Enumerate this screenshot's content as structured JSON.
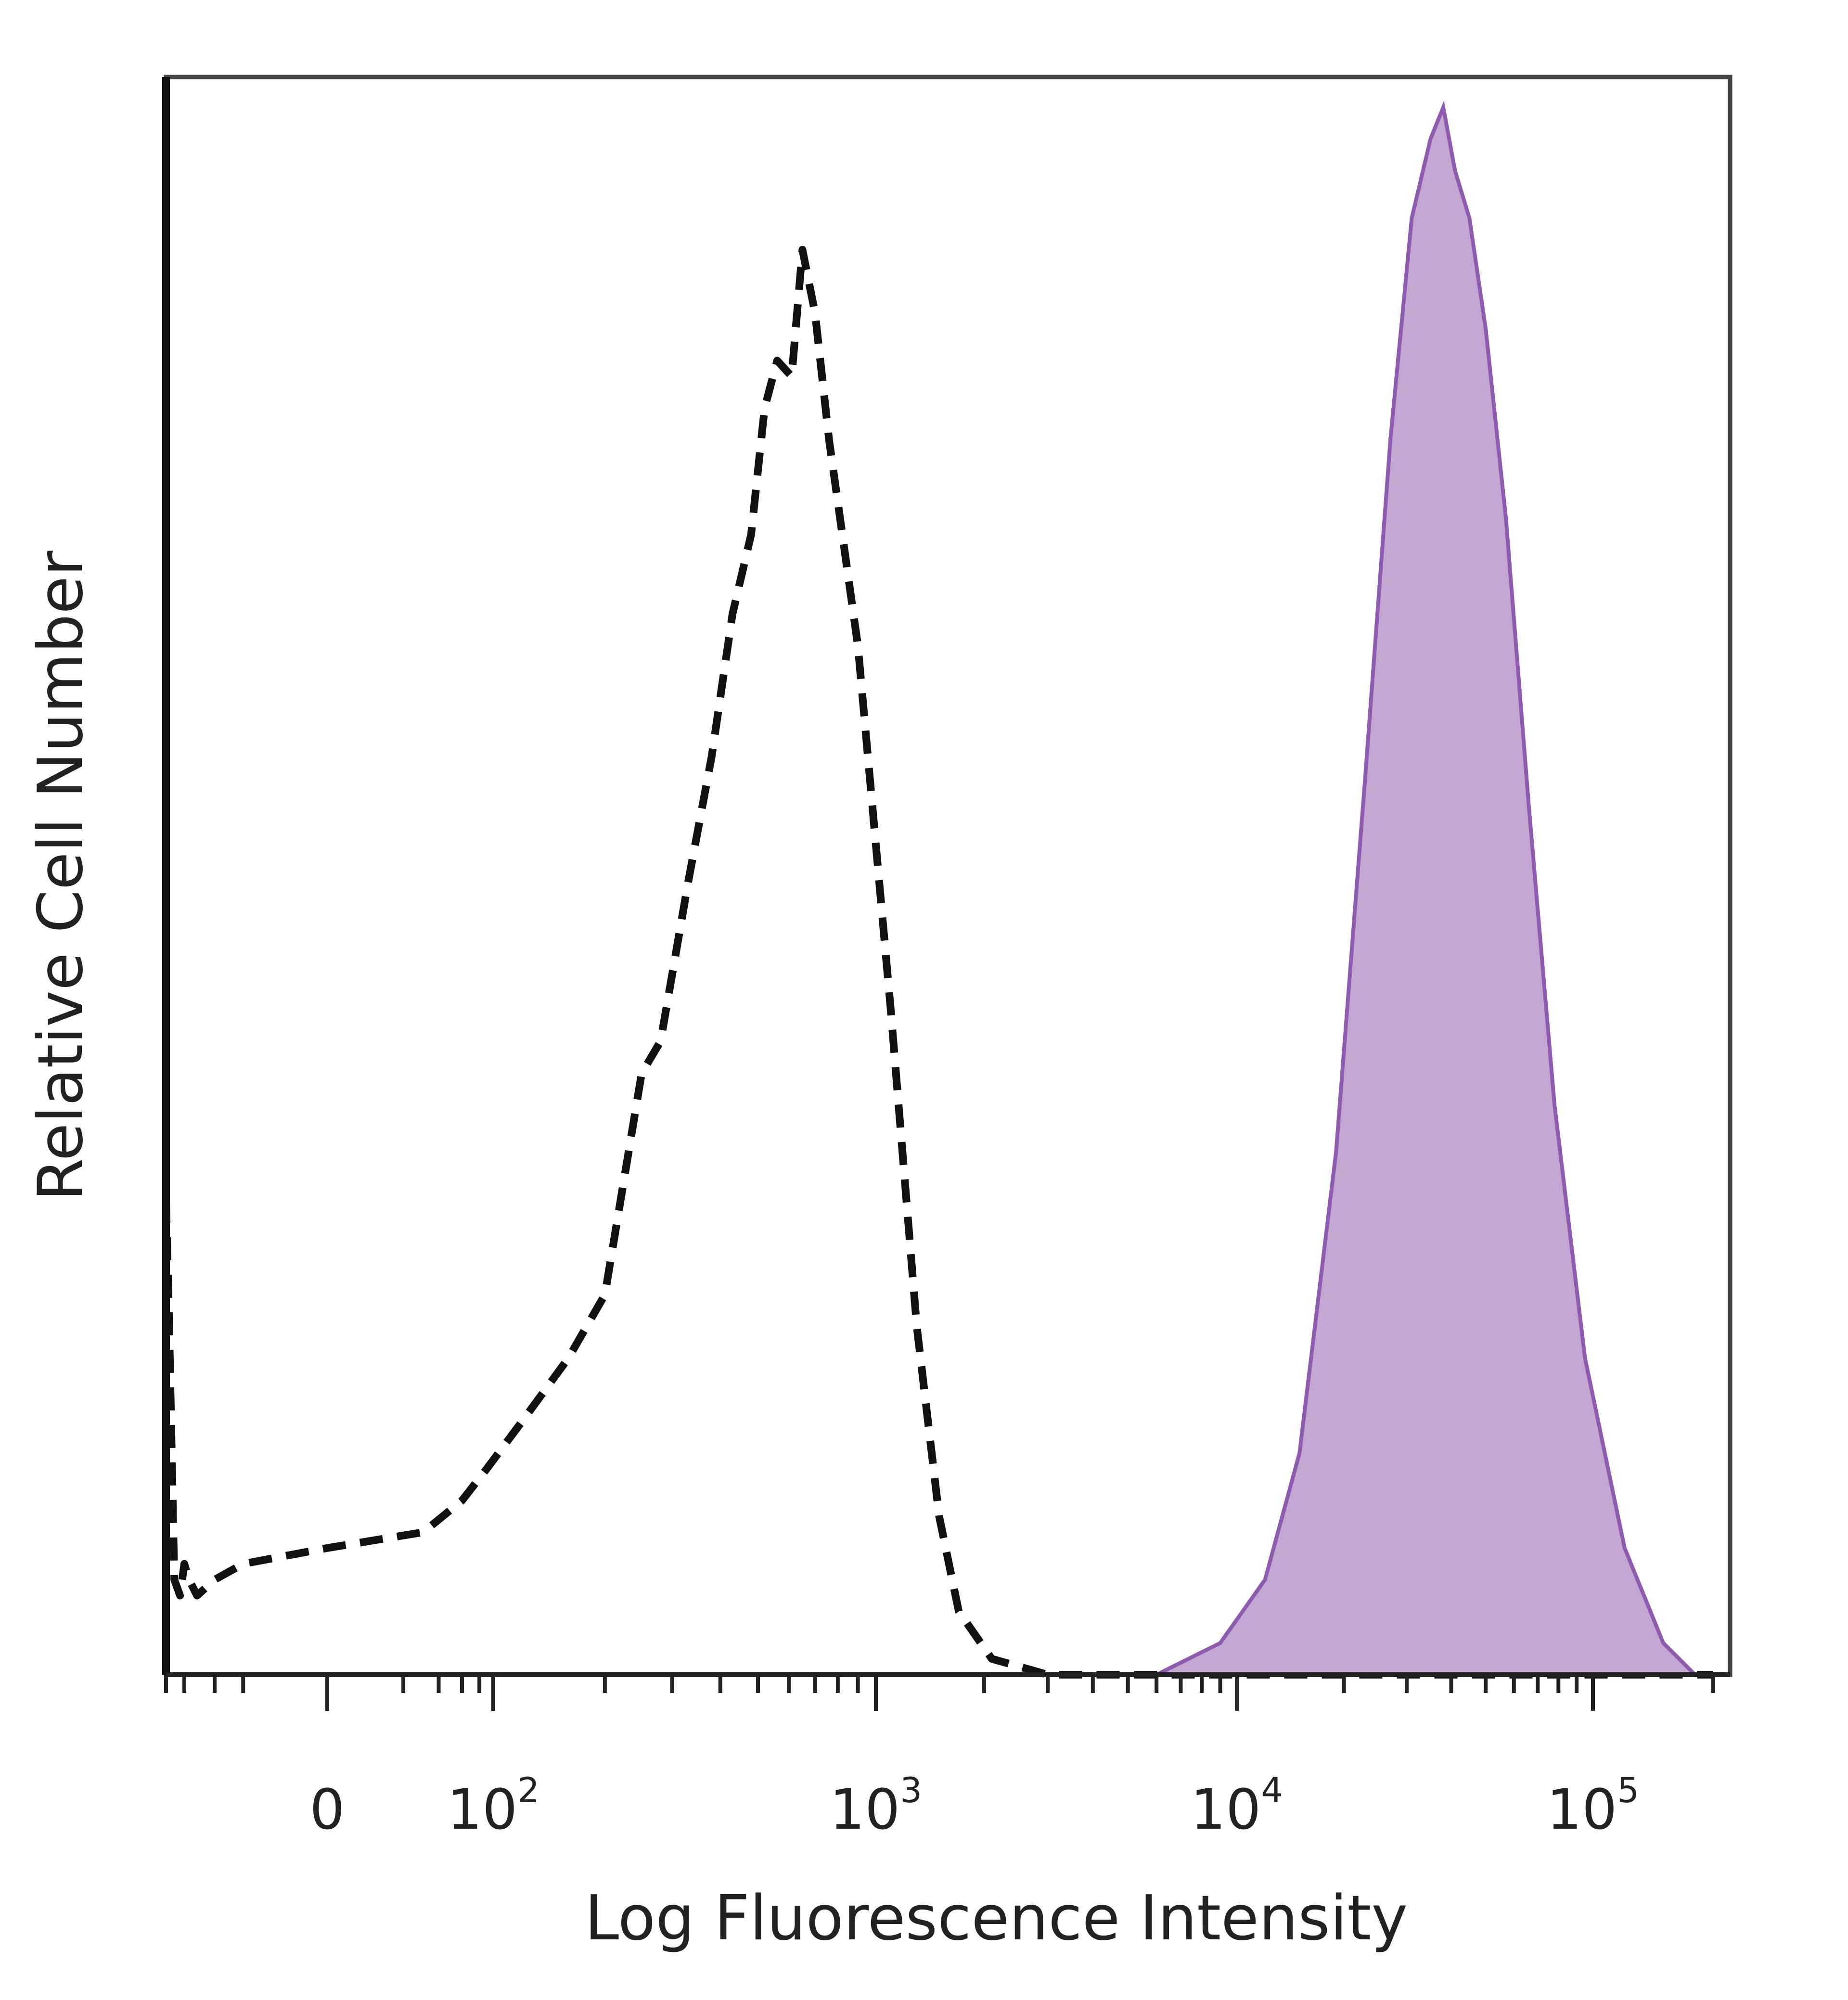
{
  "chart_data": {
    "type": "area",
    "title": "",
    "xlabel": "Log Fluorescence Intensity",
    "ylabel": "Relative Cell Number",
    "x_scale": "biexponential",
    "x_ticks": [
      {
        "value": 0,
        "base": "0",
        "exp": ""
      },
      {
        "value": 100,
        "base": "10",
        "exp": "2"
      },
      {
        "value": 1000,
        "base": "10",
        "exp": "3"
      },
      {
        "value": 10000,
        "base": "10",
        "exp": "4"
      },
      {
        "value": 100000,
        "base": "10",
        "exp": "5"
      }
    ],
    "ylim": [
      0,
      100
    ],
    "grid": false,
    "series": [
      {
        "style": "dashed",
        "color": "#111111",
        "points": [
          [
            -300,
            30
          ],
          [
            -280,
            22
          ],
          [
            -250,
            6
          ],
          [
            -220,
            5
          ],
          [
            -200,
            7
          ],
          [
            -180,
            6
          ],
          [
            -150,
            5
          ],
          [
            -100,
            6
          ],
          [
            -50,
            7
          ],
          [
            0,
            8
          ],
          [
            30,
            9
          ],
          [
            60,
            11
          ],
          [
            90,
            13
          ],
          [
            120,
            16
          ],
          [
            160,
            20
          ],
          [
            200,
            24
          ],
          [
            250,
            38
          ],
          [
            280,
            40
          ],
          [
            330,
            50
          ],
          [
            380,
            58
          ],
          [
            430,
            67
          ],
          [
            480,
            72
          ],
          [
            520,
            80
          ],
          [
            560,
            83
          ],
          [
            610,
            82
          ],
          [
            650,
            90
          ],
          [
            700,
            86
          ],
          [
            760,
            78
          ],
          [
            900,
            65
          ],
          [
            1100,
            42
          ],
          [
            1300,
            22
          ],
          [
            1500,
            10
          ],
          [
            1700,
            4
          ],
          [
            2100,
            1
          ],
          [
            3000,
            0
          ],
          [
            10000,
            0
          ],
          [
            200000,
            0
          ]
        ]
      },
      {
        "style": "filled",
        "color": "#8e5bb0",
        "fill": "#c3a6d1",
        "points": [
          [
            6000,
            0
          ],
          [
            9000,
            2
          ],
          [
            12000,
            6
          ],
          [
            15000,
            14
          ],
          [
            19000,
            33
          ],
          [
            23000,
            57
          ],
          [
            27000,
            78
          ],
          [
            31000,
            92
          ],
          [
            35000,
            97
          ],
          [
            38000,
            99
          ],
          [
            41000,
            95
          ],
          [
            45000,
            92
          ],
          [
            50000,
            85
          ],
          [
            57000,
            73
          ],
          [
            66000,
            55
          ],
          [
            78000,
            36
          ],
          [
            95000,
            20
          ],
          [
            120000,
            8
          ],
          [
            150000,
            2
          ],
          [
            180000,
            0
          ]
        ]
      }
    ]
  }
}
